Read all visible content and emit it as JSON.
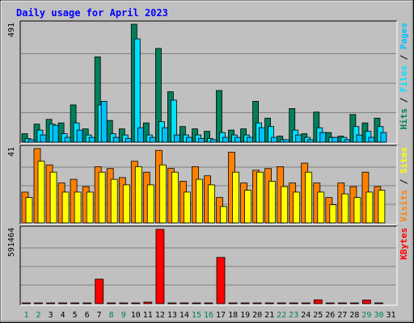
{
  "chart_data": [
    {
      "type": "bar",
      "panel": "hits-files-pages",
      "title": "Daily usage for April 2023",
      "max_label": "491",
      "ylim": [
        0,
        491
      ],
      "categories": [
        "1",
        "2",
        "3",
        "4",
        "5",
        "6",
        "7",
        "8",
        "9",
        "10",
        "11",
        "12",
        "13",
        "14",
        "15",
        "16",
        "17",
        "18",
        "19",
        "20",
        "21",
        "22",
        "23",
        "24",
        "25",
        "26",
        "27",
        "28",
        "29",
        "30",
        "31"
      ],
      "weekend_days": [
        "1",
        "2",
        "8",
        "9",
        "15",
        "16",
        "22",
        "23",
        "29",
        "30"
      ],
      "legend": [
        "Pages",
        "Files",
        "Hits"
      ],
      "series": [
        {
          "name": "Hits",
          "color": "#00805c",
          "values": [
            35,
            75,
            95,
            80,
            155,
            55,
            355,
            90,
            55,
            491,
            80,
            390,
            210,
            65,
            55,
            45,
            215,
            50,
            55,
            170,
            100,
            25,
            140,
            35,
            125,
            40,
            25,
            115,
            80,
            100,
            0
          ]
        },
        {
          "name": "Files",
          "color": "#00e0ff",
          "values": [
            15,
            50,
            75,
            35,
            80,
            30,
            155,
            35,
            30,
            430,
            30,
            85,
            175,
            30,
            30,
            15,
            40,
            30,
            30,
            80,
            65,
            10,
            50,
            20,
            60,
            20,
            20,
            65,
            45,
            65,
            0
          ]
        },
        {
          "name": "Pages",
          "color": "#00c0ff",
          "values": [
            10,
            30,
            70,
            20,
            50,
            20,
            170,
            20,
            15,
            60,
            20,
            60,
            30,
            20,
            15,
            10,
            20,
            20,
            20,
            60,
            20,
            10,
            30,
            10,
            40,
            20,
            10,
            30,
            20,
            40,
            0
          ]
        }
      ]
    },
    {
      "type": "bar",
      "panel": "visits-sites",
      "max_label": "41",
      "ylim": [
        0,
        41
      ],
      "categories": [
        "1",
        "2",
        "3",
        "4",
        "5",
        "6",
        "7",
        "8",
        "9",
        "10",
        "11",
        "12",
        "13",
        "14",
        "15",
        "16",
        "17",
        "18",
        "19",
        "20",
        "21",
        "22",
        "23",
        "24",
        "25",
        "26",
        "27",
        "28",
        "29",
        "30",
        "31"
      ],
      "legend": [
        "Sites",
        "Visits"
      ],
      "series": [
        {
          "name": "Visits",
          "color": "#ff8000",
          "values": [
            17,
            41,
            32,
            22,
            24,
            20,
            31,
            30,
            25,
            34,
            28,
            40,
            30,
            23,
            31,
            26,
            14,
            39,
            22,
            29,
            30,
            31,
            22,
            33,
            22,
            14,
            22,
            20,
            28,
            20,
            0
          ]
        },
        {
          "name": "Sites",
          "color": "#ffff00",
          "values": [
            14,
            34,
            28,
            17,
            17,
            17,
            28,
            24,
            21,
            31,
            21,
            32,
            28,
            17,
            24,
            21,
            9,
            28,
            18,
            28,
            23,
            20,
            17,
            28,
            17,
            10,
            16,
            14,
            17,
            18,
            0
          ]
        }
      ]
    },
    {
      "type": "bar",
      "panel": "kbytes",
      "max_label": "591464",
      "ylim": [
        0,
        591464
      ],
      "categories": [
        "1",
        "2",
        "3",
        "4",
        "5",
        "6",
        "7",
        "8",
        "9",
        "10",
        "11",
        "12",
        "13",
        "14",
        "15",
        "16",
        "17",
        "18",
        "19",
        "20",
        "21",
        "22",
        "23",
        "24",
        "25",
        "26",
        "27",
        "28",
        "29",
        "30",
        "31"
      ],
      "legend": [
        "KBytes"
      ],
      "series": [
        {
          "name": "KBytes",
          "color": "#ff0000",
          "values": [
            6000,
            6000,
            6000,
            6000,
            6000,
            6000,
            195000,
            6000,
            6000,
            6000,
            12000,
            591464,
            6000,
            6000,
            6000,
            6000,
            368000,
            6000,
            6000,
            6000,
            6000,
            6000,
            6000,
            6000,
            30000,
            6000,
            6000,
            6000,
            28000,
            6000,
            0
          ]
        }
      ]
    }
  ],
  "colors": {
    "background": "#c0c0c0",
    "plot": "#c0c0c0",
    "title": "#0000ff",
    "weekend_label": "#00805c",
    "weekday_label": "#000000"
  }
}
